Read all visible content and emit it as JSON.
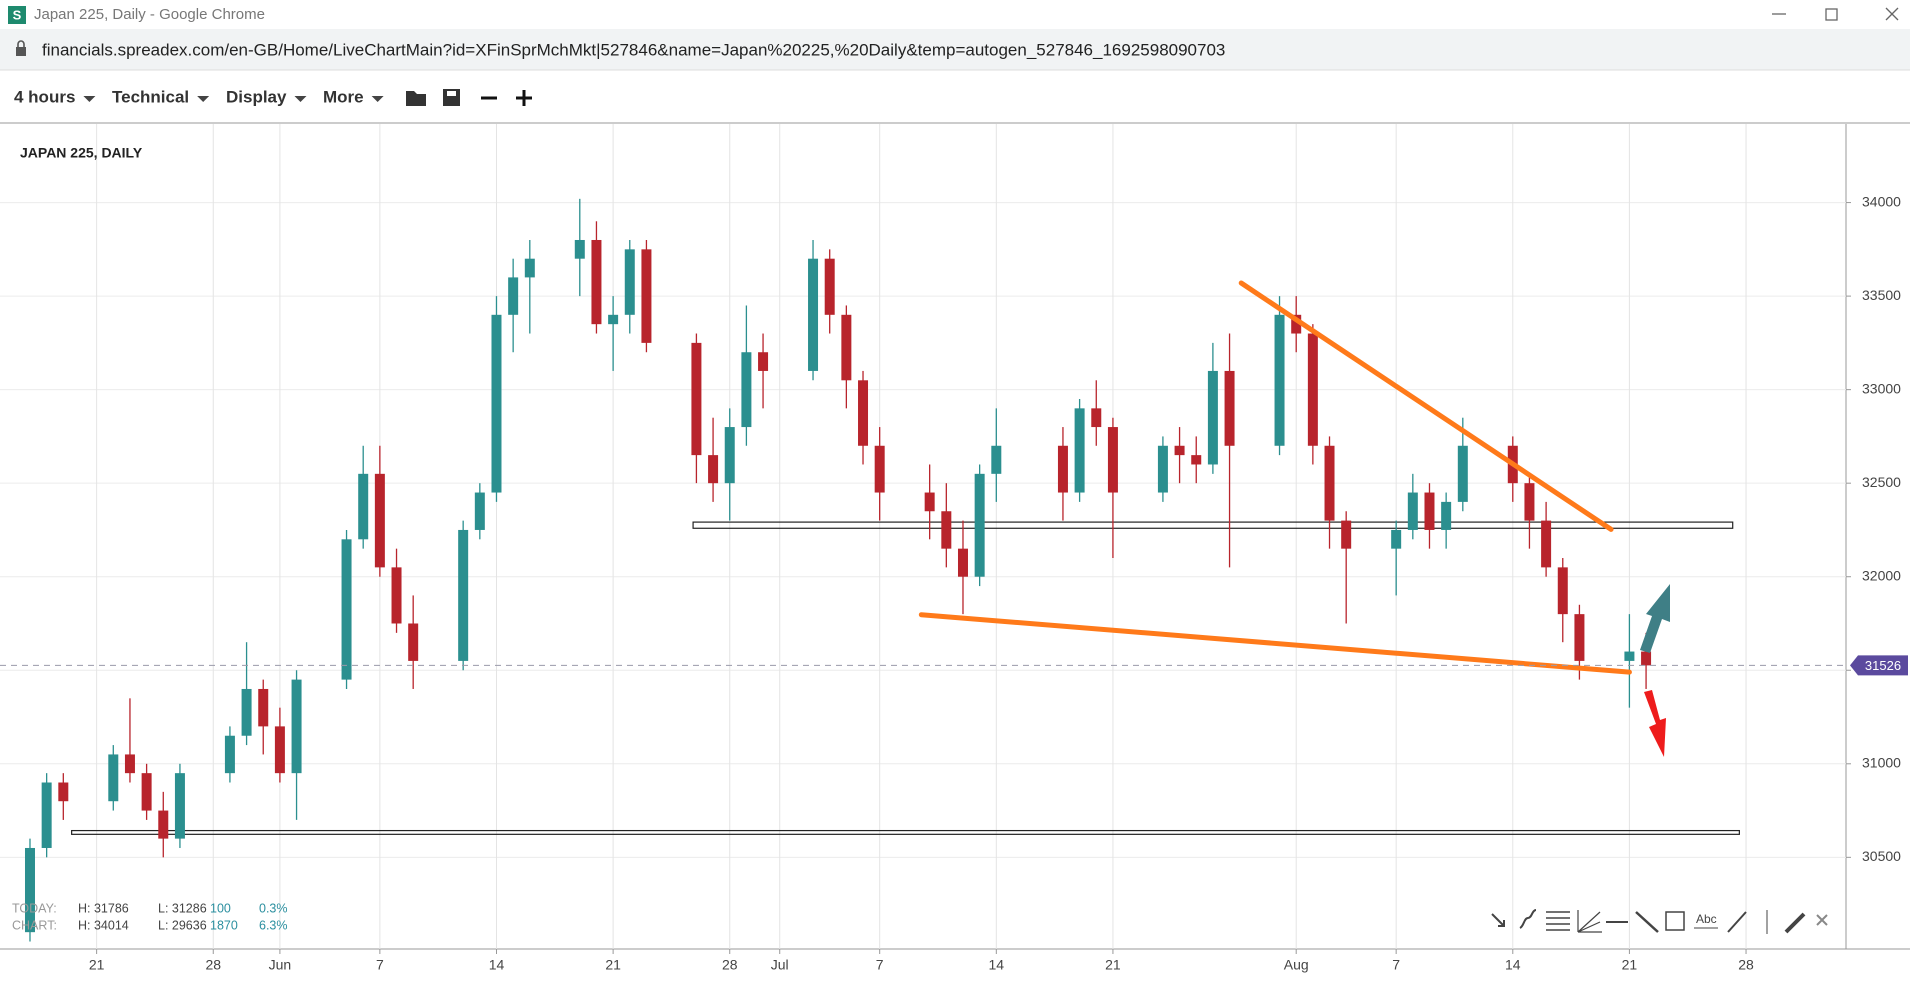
{
  "window": {
    "title": "Japan 225, Daily - Google Chrome",
    "url": "financials.spreadex.com/en-GB/Home/LiveChartMain?id=XFinSprMchMkt|527846&name=Japan%20225,%20Daily&temp=autogen_527846_1692598090703"
  },
  "toolbar": [
    "4 hours",
    "Technical",
    "Display",
    "More"
  ],
  "info": {
    "today": {
      "label": "TODAY:",
      "high": "H: 31786",
      "low": "L: 31286",
      "change": "100",
      "pct": "0.3%"
    },
    "chart": {
      "label": "CHART:",
      "high": "H: 34014",
      "low": "L: 29636",
      "change": "1870",
      "pct": "6.3%"
    }
  },
  "tool_text": "Abc",
  "chart_data": {
    "type": "candlestick",
    "title": "JAPAN 225, DAILY",
    "up_color": "#2b8f8f",
    "down_color": "#b8242c",
    "x": [
      17,
      18,
      19,
      22,
      23,
      24,
      25,
      26,
      29,
      30,
      31,
      32,
      33,
      36,
      37,
      38,
      39,
      40,
      43,
      44,
      45,
      46,
      47,
      50,
      51,
      52,
      53,
      54,
      57,
      58,
      59,
      60,
      61,
      64,
      65,
      66,
      67,
      68,
      71,
      72,
      73,
      74,
      75,
      79,
      80,
      81,
      82,
      85,
      86,
      87,
      88,
      89,
      92,
      93,
      94,
      95,
      96,
      99,
      100,
      101,
      102,
      103,
      106,
      107,
      108,
      109,
      110,
      113,
      114
    ],
    "open": [
      30100,
      30550,
      30900,
      30800,
      31050,
      30950,
      30750,
      30600,
      30950,
      31150,
      31400,
      31200,
      30950,
      31450,
      32200,
      32550,
      32050,
      31750,
      31550,
      32250,
      32450,
      33400,
      33600,
      33700,
      33800,
      33350,
      33400,
      33750,
      33250,
      32650,
      32500,
      32800,
      33200,
      33100,
      33700,
      33400,
      33050,
      32700,
      32450,
      32350,
      32150,
      32000,
      32550,
      32700,
      32450,
      32900,
      32800,
      32450,
      32700,
      32650,
      32600,
      33100,
      32700,
      33400,
      33300,
      32700,
      32300,
      32150,
      32250,
      32450,
      32250,
      32400,
      32700,
      32500,
      32300,
      32050,
      31800,
      31550,
      31600
    ],
    "high": [
      30600,
      30950,
      30950,
      31100,
      31350,
      31000,
      30850,
      31000,
      31200,
      31650,
      31450,
      31300,
      31500,
      32250,
      32700,
      32700,
      32150,
      31900,
      32300,
      32500,
      33500,
      33700,
      33800,
      34020,
      33900,
      33500,
      33800,
      33800,
      33300,
      32850,
      32900,
      33450,
      33300,
      33800,
      33750,
      33450,
      33100,
      32800,
      32600,
      32500,
      32300,
      32600,
      32900,
      32800,
      32950,
      33050,
      32850,
      32750,
      32800,
      32750,
      33250,
      33300,
      33500,
      33500,
      33350,
      32750,
      32350,
      32300,
      32550,
      32500,
      32450,
      32850,
      32750,
      32550,
      32400,
      32100,
      31850,
      31800,
      31700
    ],
    "low": [
      30050,
      30500,
      30700,
      30750,
      30900,
      30700,
      30500,
      30550,
      30900,
      31100,
      31050,
      30900,
      30700,
      31400,
      32150,
      32000,
      31700,
      31400,
      31500,
      32200,
      32400,
      33200,
      33300,
      33500,
      33300,
      33100,
      33300,
      33200,
      32500,
      32400,
      32300,
      32700,
      32900,
      33050,
      33300,
      32900,
      32600,
      32300,
      32200,
      32050,
      31800,
      31950,
      32400,
      32300,
      32400,
      32700,
      32100,
      32400,
      32500,
      32500,
      32550,
      32050,
      32650,
      33200,
      32600,
      32150,
      31750,
      31900,
      32200,
      32150,
      32150,
      32350,
      32400,
      32150,
      32000,
      31650,
      31450,
      31300,
      31400
    ],
    "close": [
      30550,
      30900,
      30800,
      31050,
      30950,
      30750,
      30600,
      30950,
      31150,
      31400,
      31200,
      30950,
      31450,
      32200,
      32550,
      32050,
      31750,
      31550,
      32250,
      32450,
      33400,
      33600,
      33700,
      33800,
      33350,
      33400,
      33750,
      33250,
      32650,
      32500,
      32800,
      33200,
      33100,
      33700,
      33400,
      33050,
      32700,
      32450,
      32350,
      32150,
      32000,
      32550,
      32700,
      32450,
      32900,
      32800,
      32450,
      32700,
      32650,
      32600,
      33100,
      32700,
      33400,
      33300,
      32700,
      32300,
      32150,
      32250,
      32450,
      32250,
      32400,
      32700,
      32500,
      32300,
      32050,
      31800,
      31550,
      31600,
      31526
    ],
    "last_price": 31526,
    "last_price_color": "#5b4a9e",
    "zones": [
      {
        "x": [
          56.8,
          119.2
        ],
        "y": [
          32259,
          32292
        ]
      },
      {
        "x": [
          19.5,
          119.6
        ],
        "y": [
          30623,
          30643
        ]
      }
    ],
    "trendlines": [
      {
        "x": [
          89.7,
          111.9
        ],
        "y": [
          33570,
          32253
        ]
      },
      {
        "x": [
          70.5,
          113
        ],
        "y": [
          31797,
          31490
        ]
      }
    ],
    "trendline_color": "#ff7a1a",
    "xlim": [
      15.2,
      126
    ],
    "ylim": [
      30010,
      34420
    ],
    "xticks": [
      {
        "value": 21,
        "label": "21"
      },
      {
        "value": 28,
        "label": "28"
      },
      {
        "value": 32,
        "label": "Jun"
      },
      {
        "value": 38,
        "label": "7"
      },
      {
        "value": 45,
        "label": "14"
      },
      {
        "value": 52,
        "label": "21"
      },
      {
        "value": 59,
        "label": "28"
      },
      {
        "value": 62,
        "label": "Jul"
      },
      {
        "value": 68,
        "label": "7"
      },
      {
        "value": 75,
        "label": "14"
      },
      {
        "value": 82,
        "label": "21"
      },
      {
        "value": 93,
        "label": "Aug"
      },
      {
        "value": 99,
        "label": "7"
      },
      {
        "value": 106,
        "label": "14"
      },
      {
        "value": 113,
        "label": "21"
      },
      {
        "value": 120,
        "label": "28"
      }
    ],
    "yticks": [
      30500,
      31000,
      31500,
      32000,
      32500,
      33000,
      33500,
      34000
    ],
    "grid": true
  }
}
